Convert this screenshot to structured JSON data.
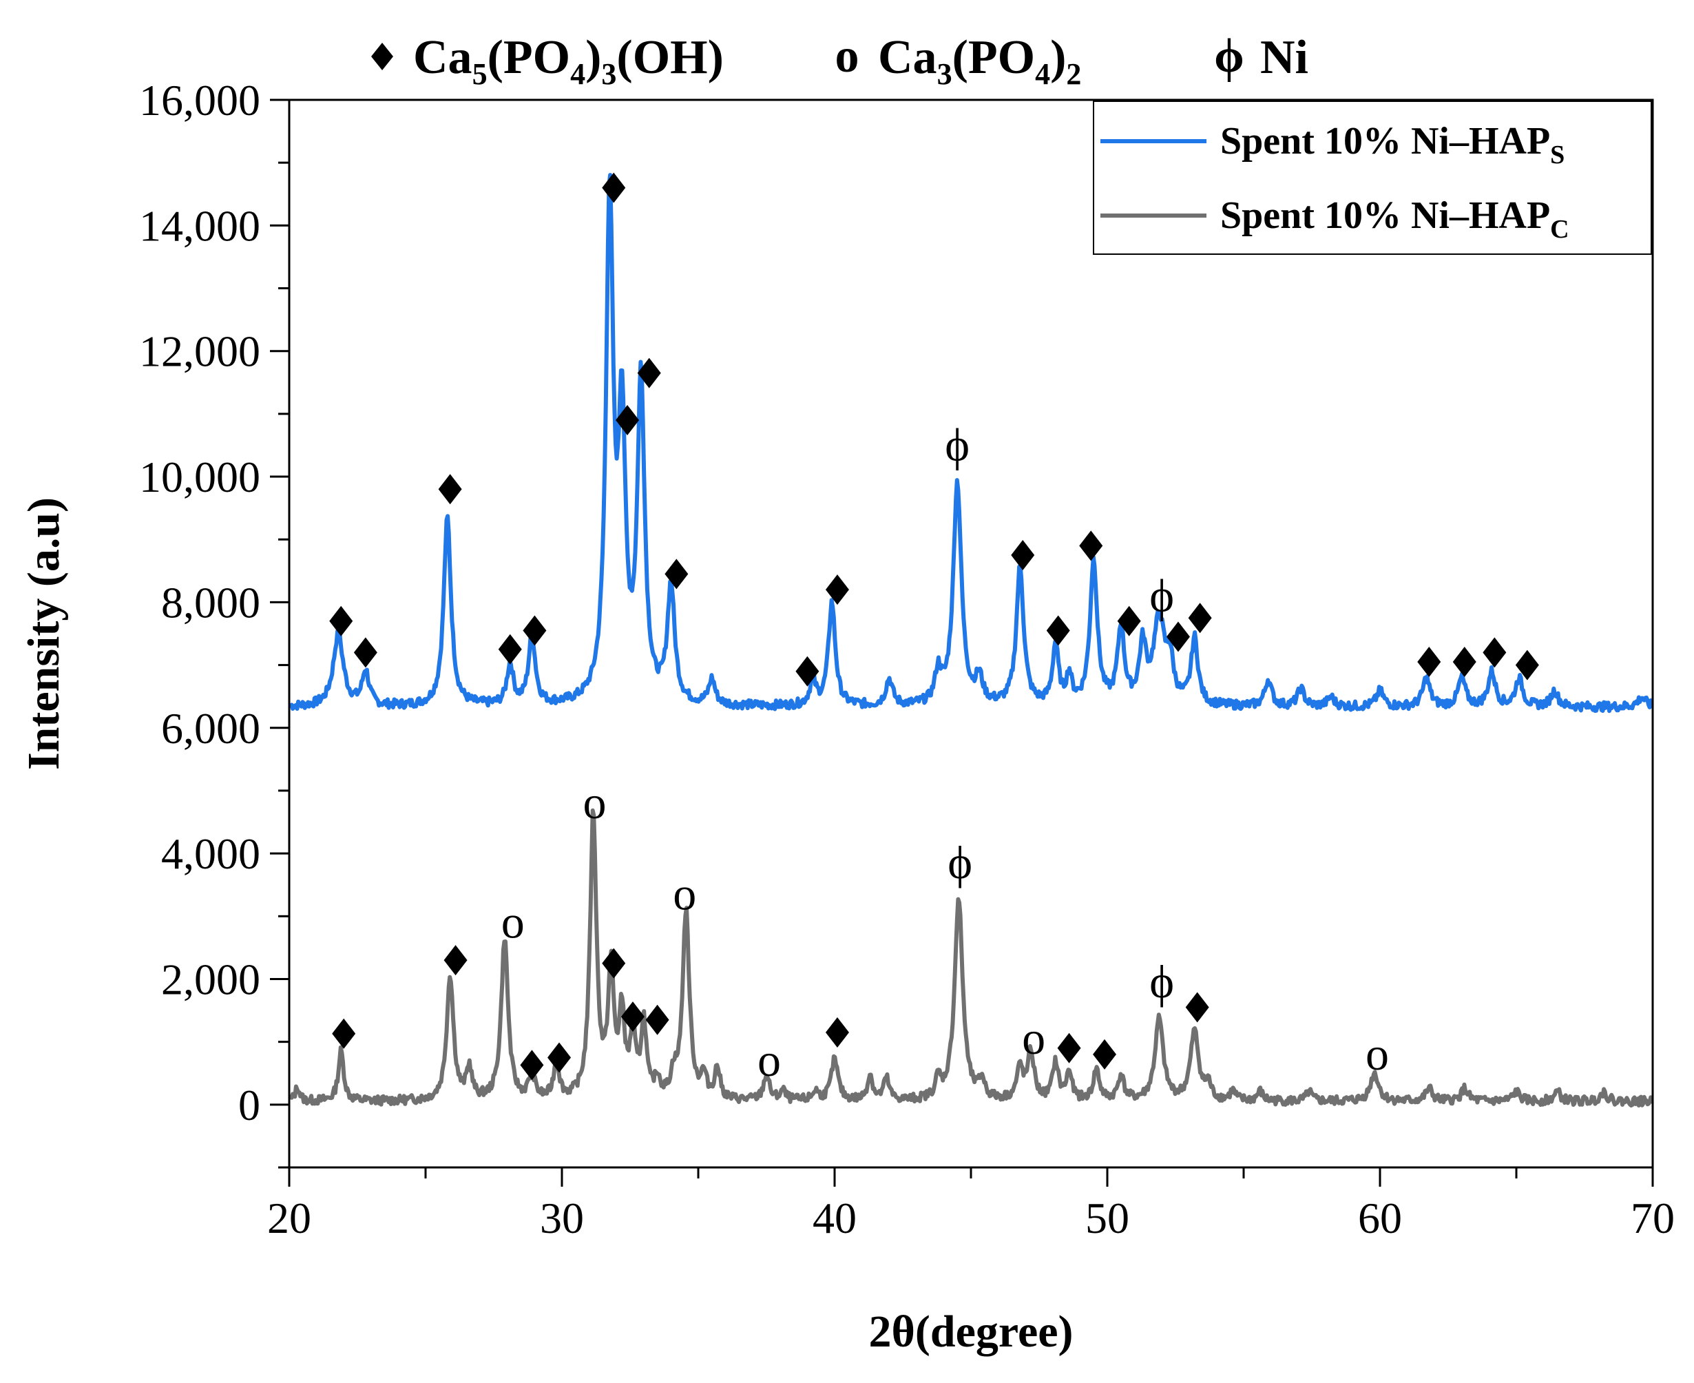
{
  "chart_data": {
    "type": "line",
    "title": "",
    "xlabel": "2θ(degree)",
    "ylabel": "Intensity (a.u)",
    "xlim": [
      20,
      70
    ],
    "ylim": [
      -1000,
      16000
    ],
    "x_ticks": [
      20,
      30,
      40,
      50,
      60,
      70
    ],
    "x_tick_labels": [
      "20",
      "30",
      "40",
      "50",
      "60",
      "70"
    ],
    "y_ticks": [
      0,
      2000,
      4000,
      6000,
      8000,
      10000,
      12000,
      14000,
      16000
    ],
    "y_tick_labels": [
      "0",
      "2,000",
      "4,000",
      "6,000",
      "8,000",
      "10,000",
      "12,000",
      "14,000",
      "16,000"
    ],
    "legend": {
      "position": "top-right",
      "entries": [
        {
          "text": "Spent 10% Ni–HAP",
          "sub": "S",
          "color": "#1f77e8"
        },
        {
          "text": "Spent 10% Ni–HAP",
          "sub": "C",
          "color": "#707070"
        }
      ]
    },
    "phase_key": [
      {
        "symbol": "♦",
        "formula": [
          [
            "Ca",
            ""
          ],
          [
            "5",
            "sub"
          ],
          [
            "(PO",
            ""
          ],
          [
            "4",
            "sub"
          ],
          [
            ")",
            ""
          ],
          [
            "3",
            "sub"
          ],
          [
            "(OH)",
            ""
          ]
        ]
      },
      {
        "symbol": "o",
        "formula": [
          [
            "Ca",
            ""
          ],
          [
            "3",
            "sub"
          ],
          [
            "(PO",
            ""
          ],
          [
            "4",
            "sub"
          ],
          [
            ")",
            ""
          ],
          [
            "2",
            "sub"
          ]
        ]
      },
      {
        "symbol": "ϕ",
        "formula": [
          [
            "Ni",
            ""
          ]
        ]
      }
    ],
    "series": [
      {
        "name": "Spent 10% Ni–HAP_S",
        "color": "#1f77e8",
        "baseline": 6330,
        "start": 6300,
        "peaks": [
          [
            21.8,
            1150,
            0.22
          ],
          [
            22.8,
            550,
            0.15
          ],
          [
            25.8,
            3000,
            0.16
          ],
          [
            28.1,
            650,
            0.14
          ],
          [
            28.9,
            1100,
            0.15
          ],
          [
            31.75,
            7950,
            0.16
          ],
          [
            32.2,
            4300,
            0.15
          ],
          [
            32.9,
            5100,
            0.16
          ],
          [
            34.0,
            1850,
            0.16
          ],
          [
            35.5,
            400,
            0.14
          ],
          [
            39.2,
            380,
            0.14
          ],
          [
            39.9,
            1650,
            0.15
          ],
          [
            42.0,
            420,
            0.15
          ],
          [
            43.8,
            500,
            0.14
          ],
          [
            44.5,
            3550,
            0.18
          ],
          [
            45.3,
            400,
            0.15
          ],
          [
            46.8,
            2200,
            0.16
          ],
          [
            48.1,
            950,
            0.13
          ],
          [
            48.6,
            450,
            0.12
          ],
          [
            49.5,
            2300,
            0.16
          ],
          [
            50.5,
            1200,
            0.15
          ],
          [
            51.3,
            900,
            0.15
          ],
          [
            51.9,
            1350,
            0.25
          ],
          [
            52.3,
            600,
            0.15
          ],
          [
            53.2,
            1050,
            0.15
          ],
          [
            55.9,
            420,
            0.15
          ],
          [
            57.1,
            280,
            0.15
          ],
          [
            58.2,
            150,
            0.15
          ],
          [
            60.0,
            250,
            0.16
          ],
          [
            61.7,
            450,
            0.16
          ],
          [
            63.0,
            450,
            0.16
          ],
          [
            64.1,
            550,
            0.16
          ],
          [
            65.1,
            450,
            0.16
          ],
          [
            66.4,
            250,
            0.16
          ],
          [
            69.6,
            150,
            0.18
          ]
        ],
        "noise_seed": 7,
        "noise_amp": 70
      },
      {
        "name": "Spent 10% Ni–HAP_C",
        "color": "#707070",
        "baseline": 50,
        "start": 0,
        "peaks": [
          [
            20.3,
            220,
            0.1
          ],
          [
            21.9,
            800,
            0.12
          ],
          [
            25.9,
            2000,
            0.15
          ],
          [
            26.6,
            500,
            0.12
          ],
          [
            27.9,
            2580,
            0.15
          ],
          [
            28.9,
            400,
            0.13
          ],
          [
            29.8,
            600,
            0.12
          ],
          [
            31.15,
            4550,
            0.14
          ],
          [
            31.8,
            2000,
            0.13
          ],
          [
            32.2,
            1300,
            0.12
          ],
          [
            32.6,
            1000,
            0.12
          ],
          [
            33.0,
            1200,
            0.12
          ],
          [
            33.5,
            300,
            0.12
          ],
          [
            34.1,
            350,
            0.12
          ],
          [
            34.55,
            3000,
            0.15
          ],
          [
            35.2,
            350,
            0.12
          ],
          [
            35.7,
            500,
            0.12
          ],
          [
            37.5,
            400,
            0.13
          ],
          [
            38.1,
            150,
            0.12
          ],
          [
            39.3,
            150,
            0.12
          ],
          [
            40.0,
            650,
            0.15
          ],
          [
            41.3,
            400,
            0.12
          ],
          [
            41.9,
            350,
            0.12
          ],
          [
            43.8,
            300,
            0.12
          ],
          [
            44.55,
            3200,
            0.18
          ],
          [
            45.4,
            300,
            0.12
          ],
          [
            46.8,
            500,
            0.14
          ],
          [
            47.2,
            750,
            0.14
          ],
          [
            48.1,
            600,
            0.13
          ],
          [
            48.6,
            450,
            0.12
          ],
          [
            49.6,
            500,
            0.13
          ],
          [
            50.5,
            400,
            0.13
          ],
          [
            51.9,
            1300,
            0.18
          ],
          [
            53.2,
            1100,
            0.18
          ],
          [
            53.7,
            250,
            0.12
          ],
          [
            54.6,
            150,
            0.12
          ],
          [
            55.6,
            150,
            0.12
          ],
          [
            57.4,
            150,
            0.12
          ],
          [
            59.8,
            450,
            0.18
          ],
          [
            61.8,
            200,
            0.15
          ],
          [
            63.1,
            200,
            0.15
          ],
          [
            65.0,
            150,
            0.15
          ],
          [
            66.5,
            150,
            0.15
          ],
          [
            68.2,
            150,
            0.15
          ]
        ],
        "noise_seed": 13,
        "noise_amp": 70
      }
    ],
    "annotations": [
      {
        "symbol": "♦",
        "x": 21.9,
        "y": 7700
      },
      {
        "symbol": "♦",
        "x": 22.8,
        "y": 7200
      },
      {
        "symbol": "♦",
        "x": 25.9,
        "y": 9800
      },
      {
        "symbol": "♦",
        "x": 28.1,
        "y": 7250
      },
      {
        "symbol": "♦",
        "x": 29.0,
        "y": 7550
      },
      {
        "symbol": "♦",
        "x": 31.9,
        "y": 14600
      },
      {
        "symbol": "♦",
        "x": 32.4,
        "y": 10900
      },
      {
        "symbol": "♦",
        "x": 33.2,
        "y": 11650
      },
      {
        "symbol": "♦",
        "x": 34.2,
        "y": 8450
      },
      {
        "symbol": "♦",
        "x": 39.0,
        "y": 6900
      },
      {
        "symbol": "♦",
        "x": 40.1,
        "y": 8200
      },
      {
        "symbol": "ϕ",
        "x": 44.5,
        "y": 10500
      },
      {
        "symbol": "♦",
        "x": 46.9,
        "y": 8750
      },
      {
        "symbol": "♦",
        "x": 48.2,
        "y": 7550
      },
      {
        "symbol": "♦",
        "x": 49.4,
        "y": 8900
      },
      {
        "symbol": "♦",
        "x": 50.8,
        "y": 7700
      },
      {
        "symbol": "ϕ",
        "x": 52.0,
        "y": 8100
      },
      {
        "symbol": "♦",
        "x": 52.6,
        "y": 7450
      },
      {
        "symbol": "♦",
        "x": 53.4,
        "y": 7750
      },
      {
        "symbol": "♦",
        "x": 61.8,
        "y": 7050
      },
      {
        "symbol": "♦",
        "x": 63.1,
        "y": 7050
      },
      {
        "symbol": "♦",
        "x": 64.2,
        "y": 7200
      },
      {
        "symbol": "♦",
        "x": 65.4,
        "y": 7000
      },
      {
        "symbol": "♦",
        "x": 22.0,
        "y": 1130
      },
      {
        "symbol": "♦",
        "x": 26.1,
        "y": 2300
      },
      {
        "symbol": "o",
        "x": 28.2,
        "y": 2900
      },
      {
        "symbol": "♦",
        "x": 28.9,
        "y": 630
      },
      {
        "symbol": "♦",
        "x": 29.9,
        "y": 750
      },
      {
        "symbol": "o",
        "x": 31.2,
        "y": 4800
      },
      {
        "symbol": "♦",
        "x": 31.9,
        "y": 2250
      },
      {
        "symbol": "♦",
        "x": 32.6,
        "y": 1400
      },
      {
        "symbol": "♦",
        "x": 33.5,
        "y": 1350
      },
      {
        "symbol": "o",
        "x": 34.5,
        "y": 3350
      },
      {
        "symbol": "o",
        "x": 37.6,
        "y": 700
      },
      {
        "symbol": "♦",
        "x": 40.1,
        "y": 1150
      },
      {
        "symbol": "ϕ",
        "x": 44.6,
        "y": 3850
      },
      {
        "symbol": "o",
        "x": 47.3,
        "y": 1050
      },
      {
        "symbol": "♦",
        "x": 48.6,
        "y": 900
      },
      {
        "symbol": "♦",
        "x": 49.9,
        "y": 800
      },
      {
        "symbol": "ϕ",
        "x": 52.0,
        "y": 1950
      },
      {
        "symbol": "♦",
        "x": 53.3,
        "y": 1550
      },
      {
        "symbol": "o",
        "x": 59.9,
        "y": 800
      }
    ]
  }
}
